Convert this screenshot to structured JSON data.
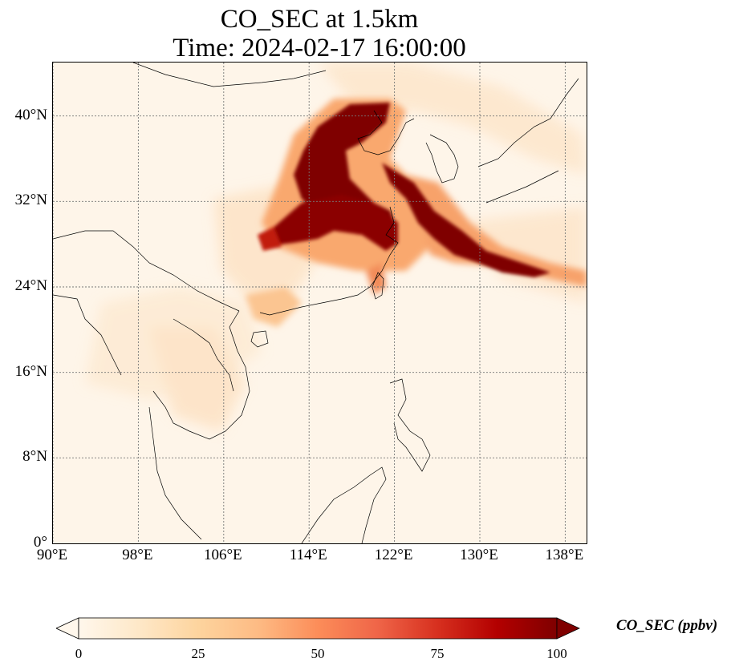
{
  "title": {
    "line1": "CO_SEC at 1.5km",
    "line2": "Time: 2024-02-17 16:00:00"
  },
  "map": {
    "projection": "PlateCarree",
    "lon_range": [
      90,
      140
    ],
    "lat_range": [
      0,
      45
    ],
    "x_ticks": [
      "90°E",
      "98°E",
      "106°E",
      "114°E",
      "122°E",
      "130°E",
      "138°E"
    ],
    "y_ticks": [
      "0°",
      "8°N",
      "16°N",
      "24°N",
      "32°N",
      "40°N"
    ],
    "gridlines": true,
    "coastlines": true,
    "borders": true
  },
  "colorbar": {
    "label": "CO_SEC (ppbv)",
    "colormap": "OrRd",
    "range": [
      0,
      100
    ],
    "ticks": [
      "0",
      "25",
      "50",
      "75",
      "100"
    ],
    "extend": "both",
    "colors": [
      "#fff7ec",
      "#fee8c8",
      "#fdd49e",
      "#fdbb84",
      "#fc8d59",
      "#ef6548",
      "#d7301f",
      "#b30000",
      "#7f0000"
    ]
  }
}
